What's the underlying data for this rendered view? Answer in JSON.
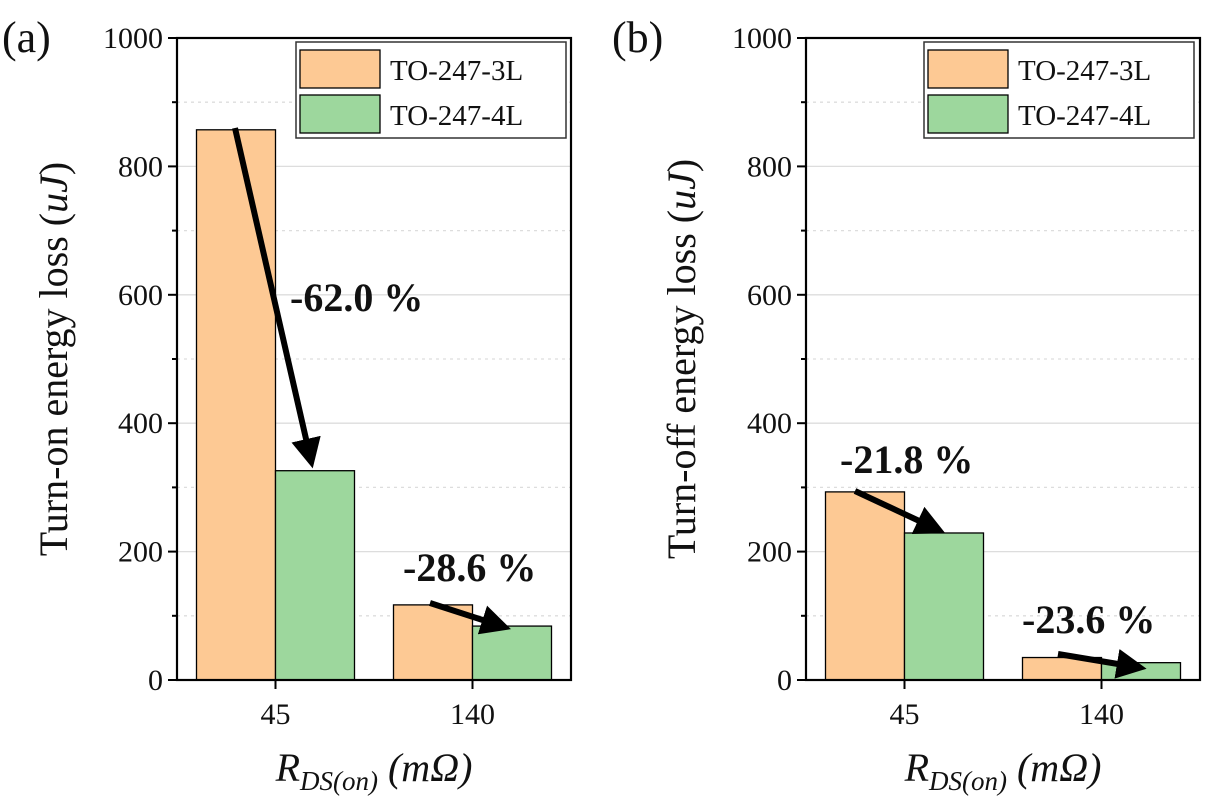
{
  "chart_data": [
    {
      "type": "bar",
      "panel_label": "(a)",
      "categories": [
        "45",
        "140"
      ],
      "series": [
        {
          "name": "TO-247-3L",
          "values": [
            857,
            117
          ],
          "color": "#fdc994"
        },
        {
          "name": "TO-247-4L",
          "values": [
            326,
            84
          ],
          "color": "#9dd79d"
        }
      ],
      "ylabel": "Turn-on energy loss (uJ)",
      "xlabel": "R_DS(on) (mΩ)",
      "ylim": [
        0,
        1000
      ],
      "yticks": [
        0,
        200,
        400,
        600,
        800,
        1000
      ],
      "grid": true,
      "legend": "top-right",
      "annotations": [
        "-62.0 %",
        "-28.6 %"
      ]
    },
    {
      "type": "bar",
      "panel_label": "(b)",
      "categories": [
        "45",
        "140"
      ],
      "series": [
        {
          "name": "TO-247-3L",
          "values": [
            293,
            35
          ],
          "color": "#fdc994"
        },
        {
          "name": "TO-247-4L",
          "values": [
            229,
            27
          ],
          "color": "#9dd79d"
        }
      ],
      "ylabel": "Turn-off energy loss (uJ)",
      "xlabel": "R_DS(on) (mΩ)",
      "ylim": [
        0,
        1000
      ],
      "yticks": [
        0,
        200,
        400,
        600,
        800,
        1000
      ],
      "grid": true,
      "legend": "top-right",
      "annotations": [
        "-21.8 %",
        "-23.6 %"
      ]
    }
  ],
  "text": {
    "ylabel_prefix_a": "Turn-on energy loss (",
    "ylabel_prefix_b": "Turn-off energy loss (",
    "ylabel_unit": "uJ",
    "ylabel_suffix": ")",
    "xlabel_r": "R",
    "xlabel_sub": "DS(on)",
    "xlabel_unit": " (mΩ)"
  }
}
